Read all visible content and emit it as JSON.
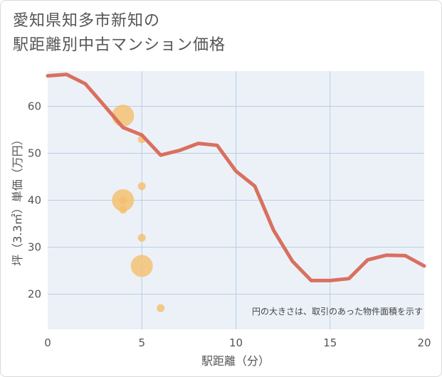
{
  "title_line1": "愛知県知多市新知の",
  "title_line2": "駅距離別中古マンション価格",
  "chart_data": {
    "type": "line",
    "xlabel": "駅距離（分）",
    "ylabel": "坪（3.3㎡）単価（万円）",
    "xlim": [
      0,
      20
    ],
    "ylim": [
      12.5,
      67.5
    ],
    "x_ticks": [
      0,
      5,
      10,
      15,
      20
    ],
    "y_ticks": [
      20,
      30,
      40,
      50,
      60
    ],
    "grid": true,
    "note": "円の大きさは、取引のあった物件面積を示す",
    "colors": {
      "line": "#d9705f",
      "bubble": "#f5bf6a",
      "plot_bg": "#ecf1f8",
      "grid": "#b9cde3"
    },
    "line": {
      "x": [
        0,
        1,
        2,
        3,
        4,
        5,
        6,
        7,
        8,
        9,
        10,
        11,
        12,
        13,
        14,
        15,
        16,
        17,
        18,
        19,
        20
      ],
      "y": [
        66.5,
        66.8,
        64.8,
        60.2,
        55.5,
        53.9,
        49.6,
        50.6,
        52.1,
        51.7,
        46.2,
        43.0,
        33.6,
        27.0,
        22.9,
        22.9,
        23.3,
        27.3,
        28.3,
        28.2,
        26.0
      ]
    },
    "bubbles": [
      {
        "x": 4,
        "y": 58,
        "size": 3
      },
      {
        "x": 5,
        "y": 53,
        "size": 1
      },
      {
        "x": 5,
        "y": 43,
        "size": 1
      },
      {
        "x": 4,
        "y": 40,
        "size": 3
      },
      {
        "x": 4,
        "y": 40,
        "size": 1
      },
      {
        "x": 4,
        "y": 38,
        "size": 1
      },
      {
        "x": 5,
        "y": 32,
        "size": 1
      },
      {
        "x": 5,
        "y": 26,
        "size": 3
      },
      {
        "x": 6,
        "y": 17,
        "size": 1
      }
    ]
  }
}
